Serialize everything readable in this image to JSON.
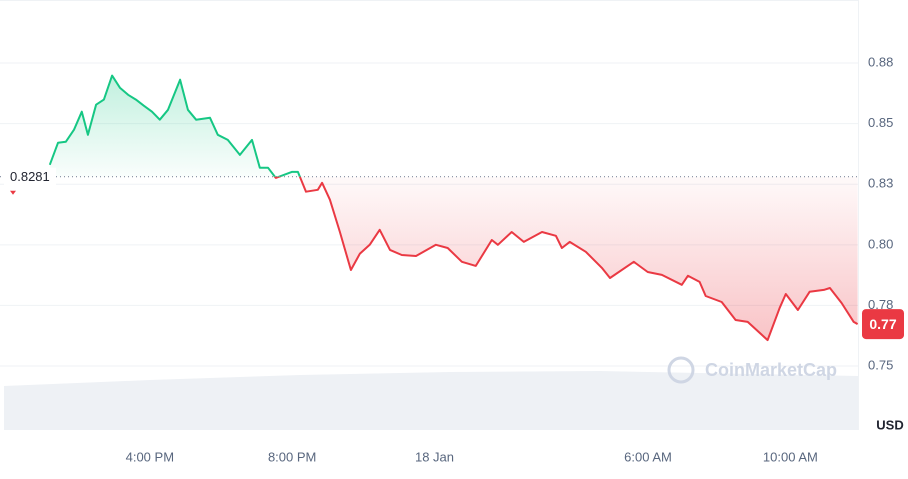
{
  "chart_data": {
    "type": "line",
    "x": [
      13.19,
      13.42,
      13.64,
      13.87,
      14.09,
      14.26,
      14.49,
      14.71,
      14.94,
      15.16,
      15.39,
      15.61,
      15.83,
      16.06,
      16.28,
      16.51,
      16.85,
      17.07,
      17.3,
      17.69,
      17.91,
      18.19,
      18.53,
      18.87,
      19.09,
      19.32,
      19.54,
      19.99,
      20.16,
      20.39,
      20.72,
      20.84,
      21.06,
      21.34,
      21.65,
      21.9,
      22.18,
      22.46,
      22.75,
      23.08,
      23.48,
      24.04,
      24.37,
      24.77,
      25.16,
      25.61,
      25.78,
      26.17,
      26.51,
      27.02,
      27.41,
      27.58,
      27.8,
      28.25,
      28.7,
      28.93,
      29.6,
      29.99,
      30.39,
      30.95,
      31.12,
      31.45,
      31.62,
      32.07,
      32.46,
      32.8,
      33.36,
      33.7,
      33.87,
      34.21,
      34.54,
      34.94,
      35.11,
      35.44,
      35.78,
      35.89
    ],
    "values": [
      0.833,
      0.8421,
      0.8425,
      0.8475,
      0.8549,
      0.8454,
      0.8578,
      0.8599,
      0.8698,
      0.8648,
      0.8619,
      0.8599,
      0.8574,
      0.8549,
      0.8516,
      0.8557,
      0.8681,
      0.8557,
      0.8516,
      0.8524,
      0.8454,
      0.8433,
      0.8371,
      0.8433,
      0.8318,
      0.8318,
      0.8276,
      0.8301,
      0.8301,
      0.8219,
      0.8227,
      0.8256,
      0.8186,
      0.8053,
      0.7896,
      0.7963,
      0.8,
      0.8062,
      0.7979,
      0.7958,
      0.7954,
      0.8,
      0.7987,
      0.793,
      0.7913,
      0.802,
      0.8,
      0.8053,
      0.8012,
      0.8053,
      0.8037,
      0.7987,
      0.8012,
      0.7971,
      0.7905,
      0.7863,
      0.793,
      0.7888,
      0.7876,
      0.7835,
      0.7872,
      0.7847,
      0.7789,
      0.7764,
      0.769,
      0.7682,
      0.7607,
      0.774,
      0.7797,
      0.7731,
      0.7806,
      0.7814,
      0.7822,
      0.776,
      0.7682,
      0.7673
    ],
    "last_value_label": "0.77",
    "baseline": 0.8281,
    "up_color": "#16c784",
    "down_color": "#ea3943",
    "xlim": [
      11.79,
      35.9
    ],
    "xticks": [
      {
        "value": 16,
        "label": "4:00 PM"
      },
      {
        "value": 20,
        "label": "8:00 PM"
      },
      {
        "value": 24,
        "label": "18 Jan"
      },
      {
        "value": 30,
        "label": "6:00 AM"
      },
      {
        "value": 34,
        "label": "10:00 AM"
      }
    ],
    "ylim": [
      0.7236,
      0.901
    ],
    "yticks": [
      {
        "value": 0.875,
        "label": "0.88"
      },
      0.85,
      {
        "value": 0.825,
        "label": "0.83"
      },
      {
        "value": 0.8,
        "label": "0.80"
      },
      {
        "value": 0.775,
        "label": "0.78"
      },
      0.75
    ],
    "y_unit": "USD",
    "watermark": "CoinMarketCap",
    "grid": true
  }
}
